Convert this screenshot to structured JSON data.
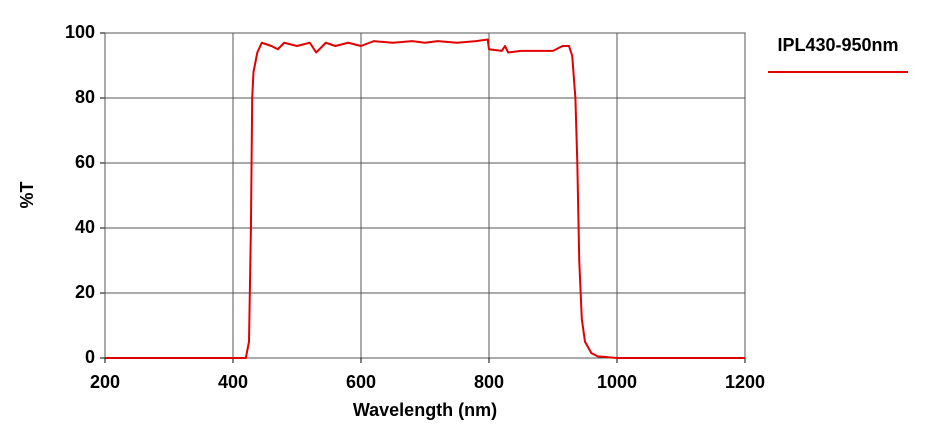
{
  "chart_data": {
    "type": "line",
    "xlabel": "Wavelength (nm)",
    "ylabel": "%T",
    "x": [
      200,
      420,
      425,
      428,
      430,
      432,
      438,
      445,
      460,
      470,
      480,
      500,
      520,
      530,
      545,
      560,
      580,
      600,
      620,
      650,
      680,
      700,
      720,
      750,
      780,
      798,
      800,
      820,
      825,
      830,
      850,
      880,
      900,
      915,
      925,
      930,
      935,
      938,
      941,
      945,
      950,
      960,
      970,
      1000,
      1200
    ],
    "series": [
      {
        "name": "IPL430-950nm",
        "color": "#e00000",
        "values": [
          0,
          0,
          5,
          40,
          80,
          88,
          94,
          97,
          96,
          95,
          97,
          96,
          97,
          94,
          97,
          96,
          97,
          96,
          97.5,
          97,
          97.5,
          97,
          97.5,
          97,
          97.5,
          98,
          95,
          94.5,
          96,
          94,
          94.5,
          94.5,
          94.5,
          96,
          96,
          93,
          80,
          60,
          30,
          12,
          5,
          1.5,
          0.5,
          0,
          0
        ]
      }
    ],
    "xlim": [
      200,
      1200
    ],
    "ylim": [
      0,
      100
    ],
    "xticks": [
      200,
      400,
      600,
      800,
      1000,
      1200
    ],
    "yticks": [
      0,
      20,
      40,
      60,
      80,
      100
    ],
    "grid": true,
    "legend": "right"
  }
}
